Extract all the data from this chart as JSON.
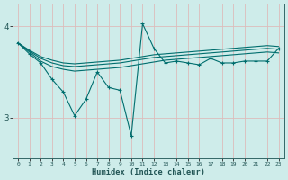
{
  "x": [
    0,
    1,
    2,
    3,
    4,
    5,
    6,
    7,
    8,
    9,
    10,
    11,
    12,
    13,
    14,
    15,
    16,
    17,
    18,
    19,
    20,
    21,
    22,
    23
  ],
  "smooth1": [
    3.82,
    3.74,
    3.67,
    3.63,
    3.6,
    3.59,
    3.6,
    3.61,
    3.62,
    3.63,
    3.65,
    3.67,
    3.69,
    3.7,
    3.71,
    3.72,
    3.73,
    3.74,
    3.75,
    3.76,
    3.77,
    3.78,
    3.79,
    3.78
  ],
  "smooth2": [
    3.82,
    3.73,
    3.65,
    3.6,
    3.57,
    3.56,
    3.57,
    3.58,
    3.59,
    3.6,
    3.62,
    3.64,
    3.66,
    3.67,
    3.68,
    3.69,
    3.7,
    3.71,
    3.72,
    3.73,
    3.74,
    3.75,
    3.76,
    3.75
  ],
  "smooth3": [
    3.82,
    3.72,
    3.62,
    3.56,
    3.53,
    3.51,
    3.52,
    3.53,
    3.54,
    3.55,
    3.57,
    3.59,
    3.61,
    3.63,
    3.64,
    3.65,
    3.66,
    3.67,
    3.68,
    3.69,
    3.7,
    3.71,
    3.72,
    3.71
  ],
  "volatile": [
    3.82,
    3.7,
    3.6,
    3.42,
    3.28,
    3.02,
    3.2,
    3.5,
    3.33,
    3.3,
    2.8,
    4.03,
    3.76,
    3.6,
    3.62,
    3.6,
    3.58,
    3.65,
    3.6,
    3.6,
    3.62,
    3.62,
    3.62,
    3.76
  ],
  "background_color": "#ceecea",
  "grid_color": "#ddbbbb",
  "line_color": "#006e6e",
  "xlabel": "Humidex (Indice chaleur)",
  "yticks": [
    3,
    4
  ],
  "xtick_labels": [
    "0",
    "1",
    "2",
    "3",
    "4",
    "5",
    "6",
    "7",
    "8",
    "9",
    "10",
    "11",
    "12",
    "13",
    "14",
    "15",
    "16",
    "17",
    "18",
    "19",
    "20",
    "21",
    "22",
    "23"
  ],
  "xlim": [
    -0.5,
    23.5
  ],
  "ylim": [
    2.55,
    4.25
  ]
}
